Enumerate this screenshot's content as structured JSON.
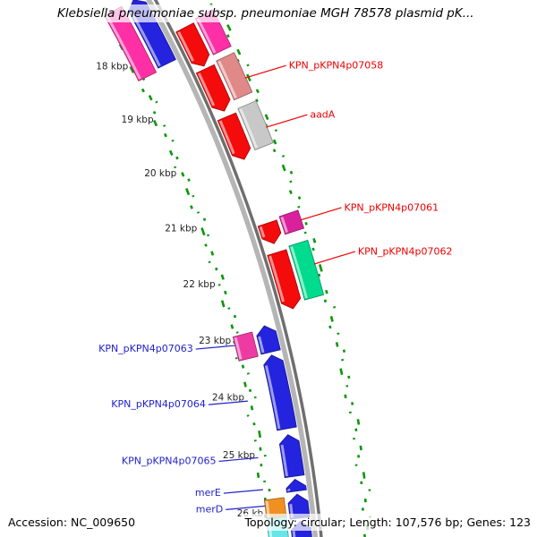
{
  "title": "Klebsiella pneumoniae subsp. pneumoniae MGH 78578 plasmid pK...",
  "status_bar": {
    "accession": "Accession: NC_009650",
    "summary": "Topology: circular; Length: 107,576 bp; Genes: 123"
  },
  "chart_data": {
    "type": "circular-genome-map-arc",
    "units": "kbp",
    "visible_range_kbp": [
      17.0,
      26.6
    ],
    "topology": "circular",
    "sequence_length_bp": 107576,
    "gene_count": 123,
    "ruler_ticks": [
      {
        "kbp": 18,
        "label": "18 kbp"
      },
      {
        "kbp": 19,
        "label": "19 kbp"
      },
      {
        "kbp": 20,
        "label": "20 kbp"
      },
      {
        "kbp": 21,
        "label": "21 kbp"
      },
      {
        "kbp": 22,
        "label": "22 kbp"
      },
      {
        "kbp": 23,
        "label": "23 kbp"
      },
      {
        "kbp": 24,
        "label": "24 kbp"
      },
      {
        "kbp": 25,
        "label": "25 kbp"
      },
      {
        "kbp": 26,
        "label": "26 kb"
      }
    ],
    "colors": {
      "forward_gene": "#f40b0b",
      "reverse_gene": "#2423dd",
      "backbone_light": "#b5b5b5",
      "backbone_dark": "#6f6f6f",
      "dash": "#089708",
      "tick_text": "#222222",
      "forward_label": "#ee0000",
      "reverse_label": "#2222cc"
    },
    "forward_genes": [
      {
        "name": null,
        "gene_span": [
          17.85,
          18.55
        ],
        "cds_span": [
          17.8,
          18.45
        ],
        "cds_color": "#ff2fa6"
      },
      {
        "name": "KPN_pKPN4p07058",
        "label_kbp": 19.0,
        "gene_span": [
          18.6,
          19.35
        ],
        "cds_span": [
          18.56,
          19.25
        ],
        "cds_color": "#e08989"
      },
      {
        "name": "aadA",
        "label_kbp": 19.85,
        "gene_span": [
          19.45,
          20.2
        ],
        "cds_span": [
          19.4,
          20.12
        ],
        "cds_color": "#c8c8c8"
      },
      {
        "name": "KPN_pKPN4p07061",
        "label_kbp": 21.42,
        "gene_span": [
          21.3,
          21.65
        ],
        "cds_span": [
          21.26,
          21.56
        ],
        "cds_color": "#d9219d"
      },
      {
        "name": "KPN_pKPN4p07062",
        "label_kbp": 22.15,
        "gene_span": [
          21.8,
          22.75
        ],
        "cds_span": [
          21.76,
          22.66
        ],
        "cds_color": "#00db8d"
      }
    ],
    "reverse_genes": [
      {
        "name": null,
        "gene_span": [
          17.05,
          18.25
        ],
        "cds_span": [
          17.05,
          18.3
        ],
        "cds_color": "#ff2fa6"
      },
      {
        "name": "KPN_pKPN4p07063",
        "label_kbp": 23.1,
        "gene_span": [
          22.9,
          23.35
        ],
        "cds_span": [
          22.95,
          23.37
        ],
        "cds_color": "#ee3ba4"
      },
      {
        "name": "KPN_pKPN4p07064",
        "label_kbp": 24.07,
        "gene_span": [
          23.4,
          24.65
        ],
        "cds_span": null,
        "cds_color": null
      },
      {
        "name": "KPN_pKPN4p07065",
        "label_kbp": 25.05,
        "gene_span": [
          24.75,
          25.45
        ],
        "cds_span": null,
        "cds_color": null
      },
      {
        "name": "merE",
        "label_kbp": 25.6,
        "gene_span": [
          25.5,
          25.7
        ],
        "cds_span": null,
        "cds_color": null
      },
      {
        "name": "merD",
        "label_kbp": 25.88,
        "gene_span": [
          25.75,
          26.15
        ],
        "cds_span": [
          25.78,
          26.1
        ],
        "cds_color": "#f09022"
      },
      {
        "name": null,
        "gene_span": [
          26.2,
          26.75
        ],
        "cds_span": [
          26.1,
          26.7
        ],
        "cds_color": "#66e6e6"
      }
    ],
    "inner_dashes": [
      [
        16.92,
        -51,
        3
      ],
      [
        17.05,
        -55,
        2
      ],
      [
        17.18,
        -50,
        3
      ],
      [
        17.32,
        -54,
        5
      ],
      [
        17.46,
        -48,
        2
      ],
      [
        17.6,
        -55,
        7
      ],
      [
        17.74,
        -50,
        3
      ],
      [
        17.88,
        -47,
        2
      ],
      [
        18.02,
        -56,
        8
      ],
      [
        18.16,
        -52,
        3
      ],
      [
        18.3,
        -49,
        2
      ],
      [
        18.45,
        -55,
        4
      ],
      [
        18.6,
        -51,
        6
      ],
      [
        18.74,
        -47,
        2
      ],
      [
        18.88,
        -54,
        3
      ],
      [
        19.02,
        -58,
        7
      ],
      [
        19.16,
        -50,
        2
      ],
      [
        19.3,
        -53,
        4
      ],
      [
        19.45,
        -48,
        2
      ],
      [
        19.6,
        -55,
        6
      ],
      [
        19.74,
        -51,
        3
      ],
      [
        19.88,
        -57,
        2
      ],
      [
        20.02,
        -52,
        5
      ],
      [
        20.16,
        -48,
        3
      ],
      [
        20.3,
        -54,
        8
      ],
      [
        20.45,
        -50,
        2
      ],
      [
        20.6,
        -56,
        4
      ],
      [
        20.74,
        -51,
        2
      ],
      [
        20.88,
        -47,
        3
      ],
      [
        21.02,
        -53,
        9
      ],
      [
        21.16,
        -49,
        2
      ],
      [
        21.3,
        -55,
        3
      ],
      [
        21.45,
        -51,
        5
      ],
      [
        21.6,
        -57,
        2
      ],
      [
        21.74,
        -52,
        3
      ],
      [
        21.88,
        -48,
        6
      ],
      [
        22.02,
        -54,
        2
      ],
      [
        22.16,
        -50,
        4
      ],
      [
        22.3,
        -56,
        8
      ],
      [
        22.45,
        -51,
        2
      ],
      [
        22.6,
        -47,
        3
      ],
      [
        22.74,
        -53,
        5
      ],
      [
        22.88,
        -49,
        2
      ],
      [
        23.02,
        -55,
        3
      ],
      [
        23.16,
        -51,
        7
      ],
      [
        23.3,
        -57,
        2
      ],
      [
        23.45,
        -52,
        4
      ],
      [
        23.6,
        -48,
        2
      ],
      [
        23.74,
        -54,
        6
      ],
      [
        23.88,
        -50,
        3
      ],
      [
        24.02,
        -46,
        2
      ],
      [
        24.16,
        -52,
        5
      ],
      [
        24.3,
        -58,
        2
      ],
      [
        24.45,
        -53,
        3
      ],
      [
        24.6,
        -49,
        8
      ],
      [
        24.74,
        -55,
        2
      ],
      [
        24.88,
        -51,
        4
      ],
      [
        25.02,
        -47,
        2
      ],
      [
        25.16,
        -53,
        3
      ],
      [
        25.3,
        -58,
        6
      ],
      [
        25.45,
        -52,
        2
      ],
      [
        25.6,
        -48,
        3
      ],
      [
        25.74,
        -54,
        5
      ],
      [
        25.88,
        -50,
        2
      ],
      [
        26.02,
        -56,
        4
      ],
      [
        26.16,
        -51,
        3
      ],
      [
        26.3,
        -47,
        2
      ],
      [
        26.44,
        -53,
        5
      ]
    ],
    "outer_dashes": [
      [
        17.7,
        56,
        3
      ],
      [
        17.84,
        60,
        5
      ],
      [
        17.98,
        54,
        2
      ],
      [
        18.12,
        62,
        7
      ],
      [
        18.26,
        57,
        3
      ],
      [
        18.4,
        53,
        2
      ],
      [
        18.54,
        60,
        6
      ],
      [
        18.68,
        55,
        3
      ],
      [
        18.82,
        63,
        2
      ],
      [
        18.96,
        58,
        8
      ],
      [
        19.1,
        54,
        2
      ],
      [
        19.24,
        61,
        4
      ],
      [
        19.38,
        56,
        3
      ],
      [
        19.52,
        52,
        2
      ],
      [
        19.66,
        59,
        6
      ],
      [
        19.8,
        55,
        3
      ],
      [
        19.94,
        63,
        2
      ],
      [
        20.08,
        57,
        5
      ],
      [
        20.22,
        53,
        3
      ],
      [
        20.36,
        60,
        2
      ],
      [
        20.5,
        56,
        7
      ],
      [
        20.64,
        62,
        3
      ],
      [
        20.78,
        58,
        2
      ],
      [
        20.92,
        54,
        4
      ],
      [
        21.06,
        61,
        3
      ],
      [
        21.2,
        57,
        2
      ],
      [
        21.34,
        53,
        6
      ],
      [
        21.48,
        59,
        3
      ],
      [
        21.62,
        55,
        2
      ],
      [
        21.76,
        62,
        5
      ],
      [
        21.9,
        58,
        3
      ],
      [
        22.04,
        54,
        2
      ],
      [
        22.18,
        60,
        8
      ],
      [
        22.32,
        56,
        3
      ],
      [
        22.46,
        52,
        2
      ],
      [
        22.6,
        59,
        4
      ],
      [
        22.74,
        55,
        3
      ],
      [
        22.88,
        63,
        2
      ],
      [
        23.02,
        57,
        6
      ],
      [
        23.16,
        53,
        3
      ],
      [
        23.3,
        60,
        2
      ],
      [
        23.44,
        56,
        5
      ],
      [
        23.58,
        62,
        3
      ],
      [
        23.72,
        58,
        2
      ],
      [
        23.86,
        54,
        7
      ],
      [
        24.0,
        61,
        3
      ],
      [
        24.14,
        57,
        2
      ],
      [
        24.28,
        53,
        4
      ],
      [
        24.42,
        59,
        3
      ],
      [
        24.56,
        55,
        2
      ],
      [
        24.7,
        62,
        6
      ],
      [
        24.84,
        58,
        3
      ],
      [
        24.98,
        54,
        2
      ],
      [
        25.12,
        60,
        5
      ],
      [
        25.26,
        56,
        3
      ],
      [
        25.4,
        52,
        2
      ],
      [
        25.54,
        59,
        7
      ],
      [
        25.68,
        55,
        3
      ],
      [
        25.82,
        63,
        2
      ],
      [
        25.96,
        57,
        4
      ],
      [
        26.1,
        53,
        3
      ],
      [
        26.24,
        60,
        2
      ],
      [
        26.38,
        56,
        5
      ],
      [
        26.52,
        52,
        3
      ]
    ]
  }
}
